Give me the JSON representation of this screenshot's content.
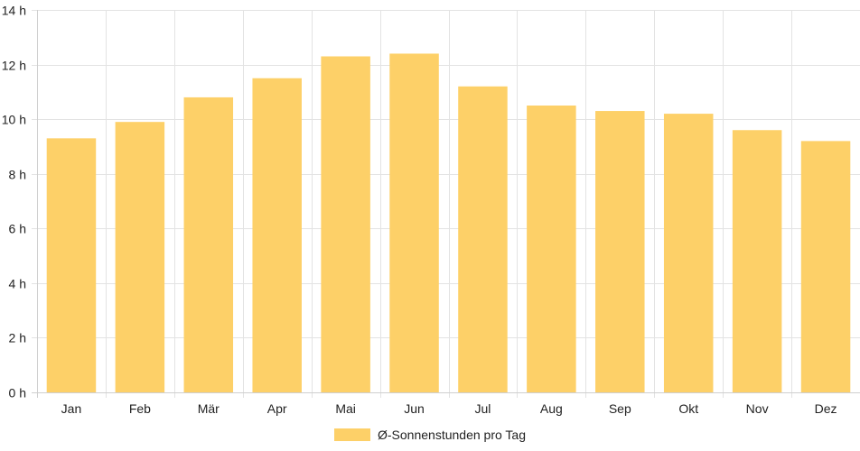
{
  "chart_data": {
    "type": "bar",
    "categories": [
      "Jan",
      "Feb",
      "Mär",
      "Apr",
      "Mai",
      "Jun",
      "Jul",
      "Aug",
      "Sep",
      "Okt",
      "Nov",
      "Dez"
    ],
    "series": [
      {
        "name": "Ø-Sonnenstunden pro Tag",
        "values": [
          9.3,
          9.9,
          10.8,
          11.5,
          12.3,
          12.4,
          11.2,
          10.5,
          10.3,
          10.2,
          9.6,
          9.2
        ],
        "color": "#fdd068"
      }
    ],
    "y_ticks": [
      "0 h",
      "2 h",
      "4 h",
      "6 h",
      "8 h",
      "10 h",
      "12 h",
      "14 h"
    ],
    "ylim": [
      0,
      14
    ],
    "title": "",
    "xlabel": "",
    "ylabel": "",
    "grid": true,
    "legend_position": "bottom"
  }
}
